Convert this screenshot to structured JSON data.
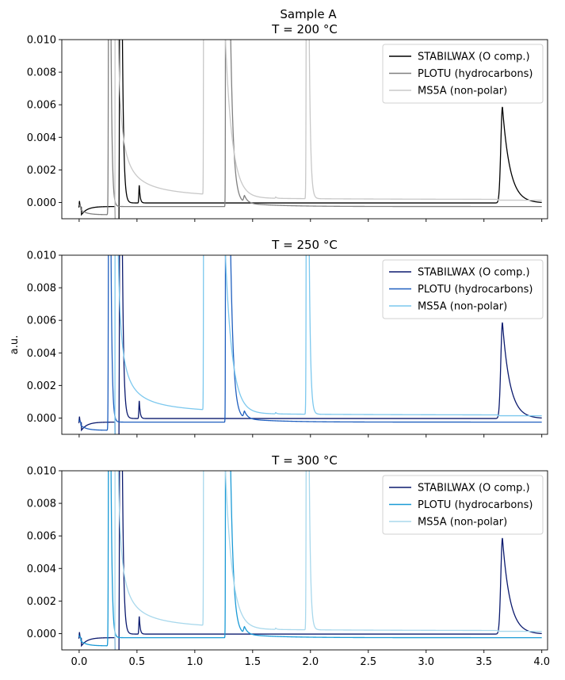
{
  "figure": {
    "suptitle": "Sample A",
    "ylabel": "a.u."
  },
  "chart_data": [
    {
      "type": "line",
      "title": "T = 200 °C",
      "xlim": [
        -0.15,
        4.05
      ],
      "ylim": [
        -0.001,
        0.01
      ],
      "xticks": [
        0.0,
        0.5,
        1.0,
        1.5,
        2.0,
        2.5,
        3.0,
        3.5,
        4.0
      ],
      "xtick_labels": [],
      "yticks": [
        0.0,
        0.002,
        0.004,
        0.006,
        0.008,
        0.01
      ],
      "ytick_labels": [
        "0.000",
        "0.002",
        "0.004",
        "0.006",
        "0.008",
        "0.010"
      ],
      "legend_position": "top-right",
      "series": [
        {
          "name": "STABILWAX (O comp.)",
          "color": "#000000",
          "key": "stabilwax"
        },
        {
          "name": "PLOTU (hydrocarbons)",
          "color": "#808080",
          "key": "plotu"
        },
        {
          "name": "MS5A (non-polar)",
          "color": "#c8c8c8",
          "key": "ms5a"
        }
      ]
    },
    {
      "type": "line",
      "title": "T = 250 °C",
      "xlim": [
        -0.15,
        4.05
      ],
      "ylim": [
        -0.001,
        0.01
      ],
      "xticks": [
        0.0,
        0.5,
        1.0,
        1.5,
        2.0,
        2.5,
        3.0,
        3.5,
        4.0
      ],
      "xtick_labels": [],
      "yticks": [
        0.0,
        0.002,
        0.004,
        0.006,
        0.008,
        0.01
      ],
      "ytick_labels": [
        "0.000",
        "0.002",
        "0.004",
        "0.006",
        "0.008",
        "0.010"
      ],
      "legend_position": "top-right",
      "series": [
        {
          "name": "STABILWAX (O comp.)",
          "color": "#0b1a6e",
          "key": "stabilwax"
        },
        {
          "name": "PLOTU (hydrocarbons)",
          "color": "#1f5fbf",
          "key": "plotu"
        },
        {
          "name": "MS5A (non-polar)",
          "color": "#7cc8ee",
          "key": "ms5a"
        }
      ]
    },
    {
      "type": "line",
      "title": "T = 300 °C",
      "xlim": [
        -0.15,
        4.05
      ],
      "ylim": [
        -0.001,
        0.01
      ],
      "xticks": [
        0.0,
        0.5,
        1.0,
        1.5,
        2.0,
        2.5,
        3.0,
        3.5,
        4.0
      ],
      "xtick_labels": [
        "0.0",
        "0.5",
        "1.0",
        "1.5",
        "2.0",
        "2.5",
        "3.0",
        "3.5",
        "4.0"
      ],
      "yticks": [
        0.0,
        0.002,
        0.004,
        0.006,
        0.008,
        0.01
      ],
      "ytick_labels": [
        "0.000",
        "0.002",
        "0.004",
        "0.006",
        "0.008",
        "0.010"
      ],
      "legend_position": "top-right",
      "series": [
        {
          "name": "STABILWAX (O comp.)",
          "color": "#0b1a6e",
          "key": "stabilwax"
        },
        {
          "name": "PLOTU (hydrocarbons)",
          "color": "#1a9ad6",
          "key": "plotu"
        },
        {
          "name": "MS5A (non-polar)",
          "color": "#a8d8ec",
          "key": "ms5a"
        }
      ]
    }
  ]
}
